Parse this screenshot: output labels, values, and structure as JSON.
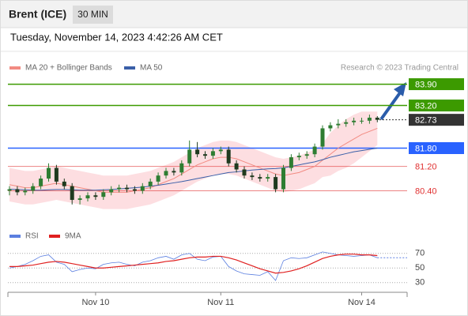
{
  "header": {
    "title": "Brent (ICE)",
    "timeframe": "30 MIN"
  },
  "timestamp": "Tuesday, November 14, 2023 4:42:26 AM CET",
  "chart_data": [
    {
      "type": "candlestick",
      "credit": "Research © 2023 Trading Central",
      "categories": [
        null,
        null,
        null,
        null,
        null,
        null,
        null,
        null,
        null,
        null,
        null,
        "Nov 10",
        null,
        null,
        null,
        null,
        null,
        null,
        null,
        null,
        null,
        null,
        null,
        null,
        null,
        null,
        null,
        "Nov 11",
        null,
        null,
        null,
        null,
        null,
        null,
        null,
        null,
        null,
        null,
        null,
        null,
        null,
        null,
        null,
        null,
        null,
        "Nov 14",
        null,
        null
      ],
      "open": [
        80.4,
        80.45,
        80.35,
        80.4,
        80.55,
        80.8,
        81.15,
        80.7,
        80.55,
        80.1,
        80.15,
        80.25,
        80.2,
        80.35,
        80.45,
        80.5,
        80.45,
        80.4,
        80.55,
        80.7,
        80.9,
        81.05,
        81.0,
        81.3,
        81.75,
        81.6,
        81.55,
        81.7,
        81.75,
        81.3,
        81.1,
        80.9,
        80.85,
        80.8,
        80.85,
        80.45,
        81.15,
        81.5,
        81.55,
        81.6,
        81.85,
        82.45,
        82.55,
        82.6,
        82.65,
        82.7,
        82.7,
        82.8
      ],
      "high": [
        80.55,
        80.55,
        80.5,
        80.65,
        80.9,
        81.3,
        81.25,
        80.8,
        80.65,
        80.25,
        80.35,
        80.35,
        80.45,
        80.55,
        80.6,
        80.6,
        80.55,
        80.65,
        80.8,
        81.0,
        81.15,
        81.15,
        81.4,
        82.05,
        82.0,
        81.7,
        81.8,
        81.85,
        81.85,
        81.4,
        81.2,
        81.0,
        80.95,
        80.95,
        80.95,
        81.25,
        81.6,
        81.65,
        81.7,
        81.95,
        82.55,
        82.65,
        82.75,
        82.75,
        82.8,
        82.8,
        82.9,
        82.85
      ],
      "low": [
        80.25,
        80.25,
        80.25,
        80.3,
        80.45,
        80.7,
        80.6,
        80.45,
        79.95,
        79.95,
        80.05,
        80.1,
        80.1,
        80.25,
        80.35,
        80.35,
        80.3,
        80.3,
        80.45,
        80.6,
        80.8,
        80.9,
        80.9,
        81.2,
        81.5,
        81.45,
        81.45,
        81.6,
        81.2,
        81.0,
        80.8,
        80.75,
        80.7,
        80.7,
        80.35,
        80.35,
        81.05,
        81.4,
        81.45,
        81.5,
        81.75,
        82.35,
        82.45,
        82.5,
        82.55,
        82.6,
        82.6,
        82.65
      ],
      "close": [
        80.45,
        80.35,
        80.4,
        80.55,
        80.8,
        81.15,
        80.7,
        80.55,
        80.1,
        80.15,
        80.25,
        80.2,
        80.35,
        80.45,
        80.5,
        80.45,
        80.4,
        80.55,
        80.7,
        80.9,
        81.05,
        81.0,
        81.3,
        81.75,
        81.6,
        81.55,
        81.7,
        81.75,
        81.3,
        81.1,
        80.9,
        80.85,
        80.8,
        80.85,
        80.45,
        81.15,
        81.5,
        81.55,
        81.6,
        81.85,
        82.45,
        82.55,
        82.6,
        82.65,
        82.7,
        82.7,
        82.8,
        82.73
      ],
      "up_color": "#2e7d32",
      "down_color": "#1f3a1f",
      "bands": {
        "color": "#fcd6da",
        "upper": [
          81.15,
          81.1,
          81.05,
          81.05,
          81.1,
          81.15,
          81.2,
          81.15,
          81.1,
          81.05,
          81.0,
          80.95,
          80.9,
          80.9,
          80.9,
          80.9,
          80.95,
          81.0,
          81.05,
          81.15,
          81.25,
          81.35,
          81.5,
          81.65,
          81.8,
          81.9,
          82.0,
          82.05,
          82.05,
          82.0,
          81.9,
          81.8,
          81.7,
          81.6,
          81.5,
          81.45,
          81.5,
          81.55,
          81.65,
          81.75,
          81.95,
          82.3,
          82.55,
          82.75,
          82.9,
          83.0,
          83.0,
          83.0
        ],
        "lower": [
          80.05,
          80.0,
          79.95,
          79.95,
          80.0,
          80.05,
          80.1,
          80.05,
          80.0,
          79.95,
          79.9,
          79.85,
          79.8,
          79.8,
          79.8,
          79.8,
          79.85,
          79.9,
          79.95,
          80.05,
          80.15,
          80.25,
          80.4,
          80.55,
          80.7,
          80.8,
          80.9,
          80.95,
          80.95,
          80.9,
          80.8,
          80.7,
          80.6,
          80.5,
          80.4,
          80.35,
          80.4,
          80.45,
          80.55,
          80.65,
          80.85,
          80.9,
          81.05,
          81.15,
          81.3,
          81.5,
          81.7,
          81.9
        ]
      },
      "series": [
        {
          "name": "MA 20 + Bollinger Bands",
          "color": "#f28b82",
          "values": [
            80.6,
            80.55,
            80.5,
            80.5,
            80.55,
            80.6,
            80.65,
            80.6,
            80.55,
            80.5,
            80.45,
            80.4,
            80.35,
            80.35,
            80.35,
            80.35,
            80.4,
            80.45,
            80.5,
            80.6,
            80.7,
            80.8,
            80.95,
            81.1,
            81.25,
            81.35,
            81.45,
            81.5,
            81.5,
            81.45,
            81.35,
            81.25,
            81.15,
            81.05,
            80.95,
            80.9,
            80.95,
            81.0,
            81.1,
            81.2,
            81.4,
            81.6,
            81.8,
            81.95,
            82.1,
            82.25,
            82.35,
            82.45
          ]
        },
        {
          "name": "MA 50",
          "color": "#3a5fa8",
          "values": [
            80.45,
            80.44,
            80.43,
            80.42,
            80.42,
            80.43,
            80.44,
            80.44,
            80.43,
            80.42,
            80.42,
            80.42,
            80.43,
            80.44,
            80.46,
            80.48,
            80.5,
            80.52,
            80.55,
            80.58,
            80.62,
            80.66,
            80.7,
            80.75,
            80.8,
            80.85,
            80.9,
            80.95,
            81.0,
            81.02,
            81.05,
            81.08,
            81.1,
            81.12,
            81.13,
            81.15,
            81.2,
            81.25,
            81.3,
            81.35,
            81.42,
            81.5,
            81.56,
            81.62,
            81.68,
            81.72,
            81.76,
            81.8
          ]
        }
      ],
      "levels": [
        {
          "value": 83.9,
          "label": "83.90",
          "color": "#3c9a00",
          "badge": true,
          "dashed": false
        },
        {
          "value": 83.2,
          "label": "83.20",
          "color": "#3c9a00",
          "badge": true,
          "dashed": false
        },
        {
          "value": 82.73,
          "label": "82.73",
          "color": "#333333",
          "badge": true,
          "dashed": true
        },
        {
          "value": 81.8,
          "label": "81.80",
          "color": "#2962ff",
          "badge": true,
          "dashed": false
        },
        {
          "value": 81.2,
          "label": "81.20",
          "color": "#e03030",
          "badge": false,
          "dashed": false
        },
        {
          "value": 80.4,
          "label": "80.40",
          "color": "#e03030",
          "badge": false,
          "dashed": false
        }
      ],
      "ylim": [
        79.4,
        84.2
      ]
    },
    {
      "type": "line",
      "ylim": [
        20,
        100
      ],
      "yticks": [
        30,
        50,
        70
      ],
      "grid": true,
      "series": [
        {
          "name": "RSI",
          "color": "#5b7fe0",
          "values": [
            50,
            52,
            55,
            60,
            66,
            68,
            58,
            55,
            45,
            48,
            50,
            49,
            55,
            57,
            58,
            55,
            53,
            58,
            60,
            64,
            66,
            62,
            68,
            70,
            62,
            60,
            65,
            66,
            52,
            46,
            42,
            41,
            40,
            45,
            33,
            60,
            64,
            63,
            64,
            68,
            72,
            70,
            68,
            67,
            66,
            67,
            68,
            64
          ]
        },
        {
          "name": "9MA",
          "color": "#e02020",
          "values": [
            52,
            52,
            53,
            54,
            56,
            58,
            59,
            58,
            56,
            54,
            52,
            50,
            50,
            51,
            52,
            53,
            54,
            55,
            56,
            57,
            59,
            60,
            62,
            64,
            65,
            65,
            66,
            66,
            64,
            61,
            57,
            53,
            49,
            46,
            43,
            44,
            46,
            49,
            53,
            58,
            63,
            66,
            68,
            69,
            69,
            68,
            68,
            67
          ]
        }
      ]
    }
  ]
}
